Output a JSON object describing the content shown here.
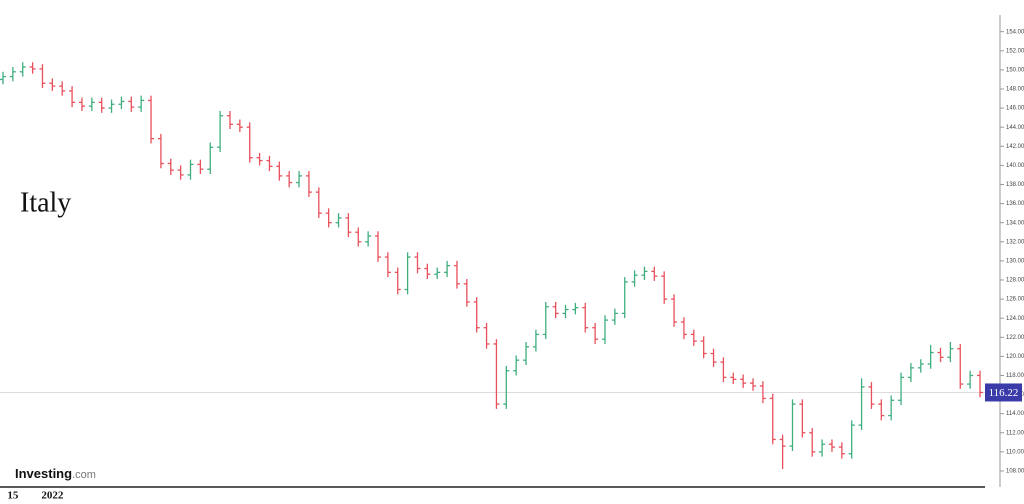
{
  "chart_data": {
    "type": "ohlc",
    "title": "Italy",
    "logo": {
      "brand": "Investing",
      "suffix": ".com"
    },
    "categories": [
      null,
      "15",
      null,
      null,
      null,
      "2022",
      null,
      null,
      null,
      null,
      null,
      null,
      null,
      null,
      null,
      null,
      null,
      null,
      null,
      null,
      null,
      null,
      null,
      null,
      null,
      null,
      null,
      null,
      null,
      null,
      null,
      null,
      null,
      null,
      null,
      null,
      null,
      null,
      null,
      null,
      null,
      null,
      null,
      null,
      null,
      null,
      null,
      null,
      null,
      null,
      null,
      null,
      null,
      null,
      null,
      null,
      null,
      null,
      null,
      null,
      null,
      null,
      null,
      null,
      null,
      null,
      null,
      null,
      null,
      null,
      null,
      null,
      null,
      null,
      null,
      null,
      null,
      null,
      null,
      null,
      null,
      null,
      null,
      null,
      null,
      null,
      null,
      null,
      null,
      null,
      null,
      null,
      null,
      null,
      null,
      null,
      null,
      null,
      null,
      null
    ],
    "open": [
      149.0,
      149.3,
      149.8,
      150.3,
      150.1,
      148.6,
      148.3,
      147.8,
      146.6,
      146.2,
      146.6,
      146.0,
      146.4,
      146.7,
      146.1,
      146.8,
      142.8,
      140.2,
      139.5,
      139.0,
      140.1,
      139.6,
      141.9,
      145.2,
      144.3,
      144.0,
      140.8,
      140.5,
      139.9,
      138.9,
      138.2,
      138.9,
      137.2,
      135.0,
      134.0,
      134.5,
      133.0,
      132.0,
      132.6,
      130.4,
      128.8,
      127.0,
      130.4,
      129.2,
      128.6,
      128.8,
      129.5,
      127.6,
      125.7,
      123.0,
      121.3,
      115.0,
      118.5,
      119.6,
      121.0,
      122.3,
      125.2,
      124.5,
      124.9,
      125.1,
      123.0,
      121.8,
      123.8,
      124.5,
      127.8,
      128.5,
      128.9,
      128.4,
      126.0,
      123.6,
      122.3,
      121.6,
      120.3,
      119.4,
      117.8,
      117.6,
      117.2,
      116.9,
      115.6,
      111.3,
      110.6,
      115.0,
      112.0,
      110.0,
      110.8,
      110.5,
      109.8,
      112.8,
      116.8,
      115.0,
      113.8,
      115.4,
      117.8,
      118.8,
      119.2,
      120.4,
      119.9,
      120.8,
      117.1,
      118.0
    ],
    "high": [
      149.8,
      150.3,
      150.8,
      150.8,
      150.6,
      149.1,
      148.8,
      148.3,
      147.1,
      147.1,
      147.1,
      146.9,
      147.2,
      147.2,
      147.3,
      147.3,
      143.3,
      140.7,
      140.0,
      140.6,
      140.6,
      142.4,
      145.7,
      145.7,
      144.8,
      144.5,
      141.3,
      141.0,
      140.4,
      139.4,
      139.4,
      139.4,
      137.7,
      135.5,
      135.0,
      135.0,
      133.5,
      133.1,
      133.1,
      130.9,
      129.3,
      130.9,
      130.9,
      129.7,
      129.3,
      130.0,
      130.0,
      128.1,
      126.2,
      123.5,
      121.8,
      119.0,
      120.1,
      121.5,
      122.8,
      125.7,
      125.7,
      125.4,
      125.6,
      125.6,
      123.5,
      124.3,
      125.0,
      128.3,
      129.0,
      129.4,
      129.4,
      128.9,
      126.5,
      124.1,
      122.8,
      122.1,
      120.8,
      119.9,
      118.3,
      118.1,
      117.7,
      117.4,
      116.1,
      111.8,
      115.5,
      115.5,
      112.5,
      111.3,
      111.3,
      111.0,
      113.3,
      117.7,
      117.3,
      115.5,
      115.9,
      118.3,
      119.3,
      119.7,
      121.2,
      120.9,
      121.5,
      121.3,
      118.5,
      118.5
    ],
    "low": [
      148.5,
      148.8,
      149.3,
      149.6,
      148.1,
      147.8,
      147.3,
      146.1,
      145.7,
      145.7,
      145.5,
      145.5,
      145.9,
      145.6,
      145.6,
      142.3,
      139.7,
      139.0,
      138.5,
      138.5,
      139.1,
      139.1,
      141.4,
      143.8,
      143.5,
      140.3,
      140.0,
      139.4,
      138.4,
      137.7,
      137.7,
      136.7,
      134.5,
      133.5,
      133.5,
      132.5,
      131.5,
      131.5,
      129.9,
      128.3,
      126.5,
      126.5,
      128.7,
      128.1,
      128.1,
      128.3,
      127.1,
      125.2,
      122.5,
      120.8,
      114.5,
      114.5,
      118.0,
      119.1,
      120.5,
      121.8,
      124.0,
      124.0,
      124.4,
      122.5,
      121.3,
      121.3,
      123.3,
      124.0,
      127.3,
      128.0,
      127.9,
      125.5,
      123.1,
      121.8,
      121.1,
      119.8,
      118.9,
      117.3,
      117.1,
      116.7,
      116.4,
      115.1,
      110.8,
      108.2,
      110.1,
      111.5,
      109.5,
      109.5,
      110.0,
      109.3,
      109.3,
      112.3,
      114.5,
      113.3,
      113.3,
      114.9,
      117.3,
      118.3,
      118.7,
      119.4,
      119.4,
      116.6,
      116.6,
      115.72
    ],
    "close": [
      149.3,
      149.8,
      150.3,
      150.1,
      148.6,
      148.3,
      147.8,
      146.6,
      146.2,
      146.6,
      146.0,
      146.4,
      146.7,
      146.1,
      146.8,
      142.8,
      140.2,
      139.5,
      139.0,
      140.1,
      139.6,
      141.9,
      145.2,
      144.3,
      144.0,
      140.8,
      140.5,
      139.9,
      138.9,
      138.2,
      138.9,
      137.2,
      135.0,
      134.0,
      134.5,
      133.0,
      132.0,
      132.6,
      130.4,
      128.8,
      127.0,
      130.4,
      129.2,
      128.6,
      128.8,
      129.5,
      127.6,
      125.7,
      123.0,
      121.3,
      115.0,
      118.5,
      119.6,
      121.0,
      122.3,
      125.2,
      124.5,
      124.9,
      125.1,
      123.0,
      121.8,
      123.8,
      124.5,
      127.8,
      128.5,
      128.9,
      128.4,
      126.0,
      123.6,
      122.3,
      121.6,
      120.3,
      119.4,
      117.8,
      117.6,
      117.2,
      116.9,
      115.6,
      111.3,
      110.6,
      115.0,
      112.0,
      110.0,
      110.8,
      110.5,
      109.8,
      112.8,
      116.8,
      115.0,
      113.8,
      115.4,
      117.8,
      118.8,
      119.2,
      120.4,
      119.9,
      120.8,
      117.1,
      118.0,
      116.22
    ],
    "up_color": "#3fae7f",
    "down_color": "#e8505b",
    "last_color": "#3a3aa8",
    "ylim": [
      106.3,
      155.8
    ],
    "yticks": [
      {
        "value": 108,
        "label": "108.00"
      },
      {
        "value": 110,
        "label": "110.00"
      },
      {
        "value": 112,
        "label": "112.00"
      },
      {
        "value": 114,
        "label": "114.00"
      },
      {
        "value": 116,
        "label": "116.00"
      },
      {
        "value": 118,
        "label": "118.00"
      },
      {
        "value": 120,
        "label": "120.00"
      },
      {
        "value": 122,
        "label": "122.00"
      },
      {
        "value": 124,
        "label": "124.00"
      },
      {
        "value": 126,
        "label": "126.00"
      },
      {
        "value": 128,
        "label": "128.00"
      },
      {
        "value": 130,
        "label": "130.00"
      },
      {
        "value": 132,
        "label": "132.00"
      },
      {
        "value": 134,
        "label": "134.00"
      },
      {
        "value": 136,
        "label": "136.00"
      },
      {
        "value": 138,
        "label": "138.00"
      },
      {
        "value": 140,
        "label": "140.00"
      },
      {
        "value": 142,
        "label": "142.00"
      },
      {
        "value": 144,
        "label": "144.00"
      },
      {
        "value": 146,
        "label": "146.00"
      },
      {
        "value": 148,
        "label": "148.00"
      },
      {
        "value": 150,
        "label": "150.00"
      },
      {
        "value": 152,
        "label": "152.00"
      },
      {
        "value": 154,
        "label": "154.00"
      }
    ],
    "grid": false
  }
}
